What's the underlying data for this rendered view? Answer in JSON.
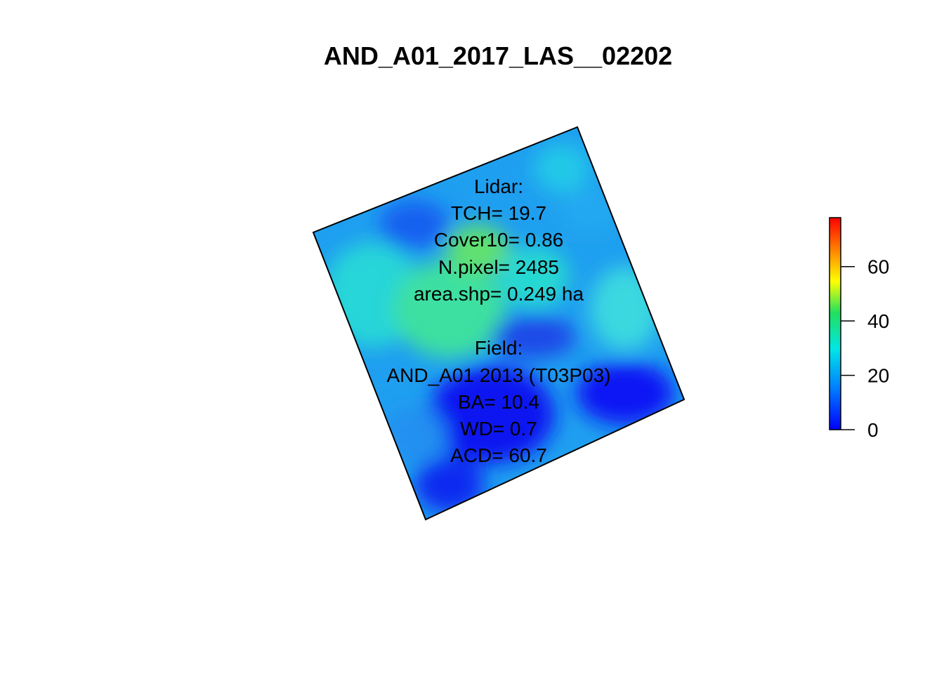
{
  "chart_data": {
    "type": "heatmap",
    "title": "AND_A01_2017_LAS__02202",
    "annotations": [
      "Lidar:",
      "TCH= 19.7",
      "Cover10= 0.86",
      "N.pixel= 2485",
      "area.shp= 0.249 ha",
      "",
      "Field:",
      "AND_A01 2013 (T03P03)",
      "BA= 10.4",
      "WD= 0.7",
      "ACD= 60.7"
    ],
    "colorbar": {
      "range": [
        0,
        78
      ],
      "ticks": [
        0,
        20,
        40,
        60
      ],
      "tick_labels": [
        "0",
        "20",
        "40",
        "60"
      ],
      "colormap": "rainbow (blue to red)"
    },
    "grid": false,
    "legend_position": "right"
  }
}
